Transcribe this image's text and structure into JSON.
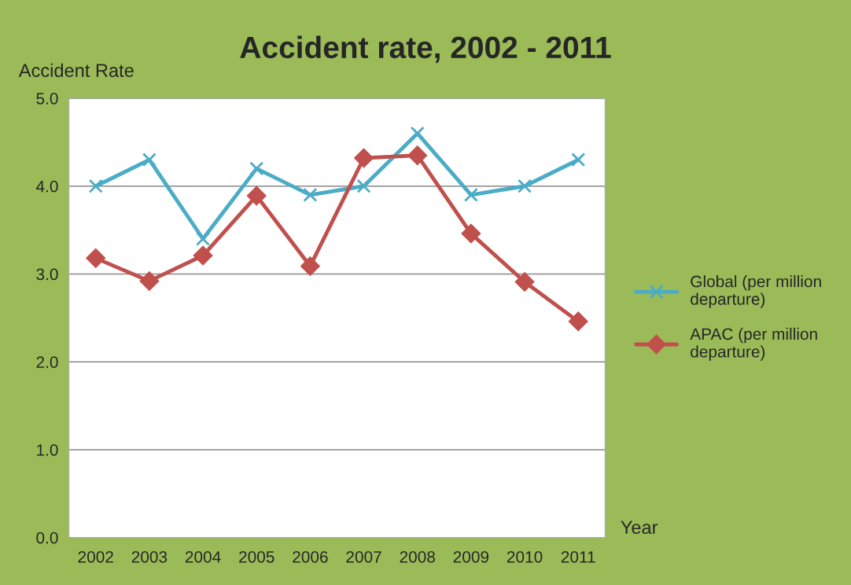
{
  "chart_data": {
    "type": "line",
    "title": "Accident rate, 2002 - 2011",
    "xlabel": "Year",
    "ylabel": "Accident Rate",
    "categories": [
      "2002",
      "2003",
      "2004",
      "2005",
      "2006",
      "2007",
      "2008",
      "2009",
      "2010",
      "2011"
    ],
    "series": [
      {
        "name": "Global (per million departure)",
        "color": "#4bacc6",
        "marker": "cross",
        "values": [
          4.0,
          4.3,
          3.4,
          4.2,
          3.9,
          4.0,
          4.6,
          3.9,
          4.0,
          4.3
        ]
      },
      {
        "name": "APAC (per million departure)",
        "color": "#c0504d",
        "marker": "diamond",
        "values": [
          3.18,
          2.92,
          3.21,
          3.89,
          3.09,
          4.32,
          4.35,
          3.46,
          2.91,
          2.46
        ]
      }
    ],
    "ylim": [
      0,
      5
    ],
    "yticks": [
      {
        "value": 0,
        "label": "0.0"
      },
      {
        "value": 1,
        "label": "1.0"
      },
      {
        "value": 2,
        "label": "2.0"
      },
      {
        "value": 3,
        "label": "3.0"
      },
      {
        "value": 4,
        "label": "4.0"
      },
      {
        "value": 5,
        "label": "5.0"
      }
    ],
    "grid": "y",
    "legend": "right",
    "line_style": "solid"
  }
}
